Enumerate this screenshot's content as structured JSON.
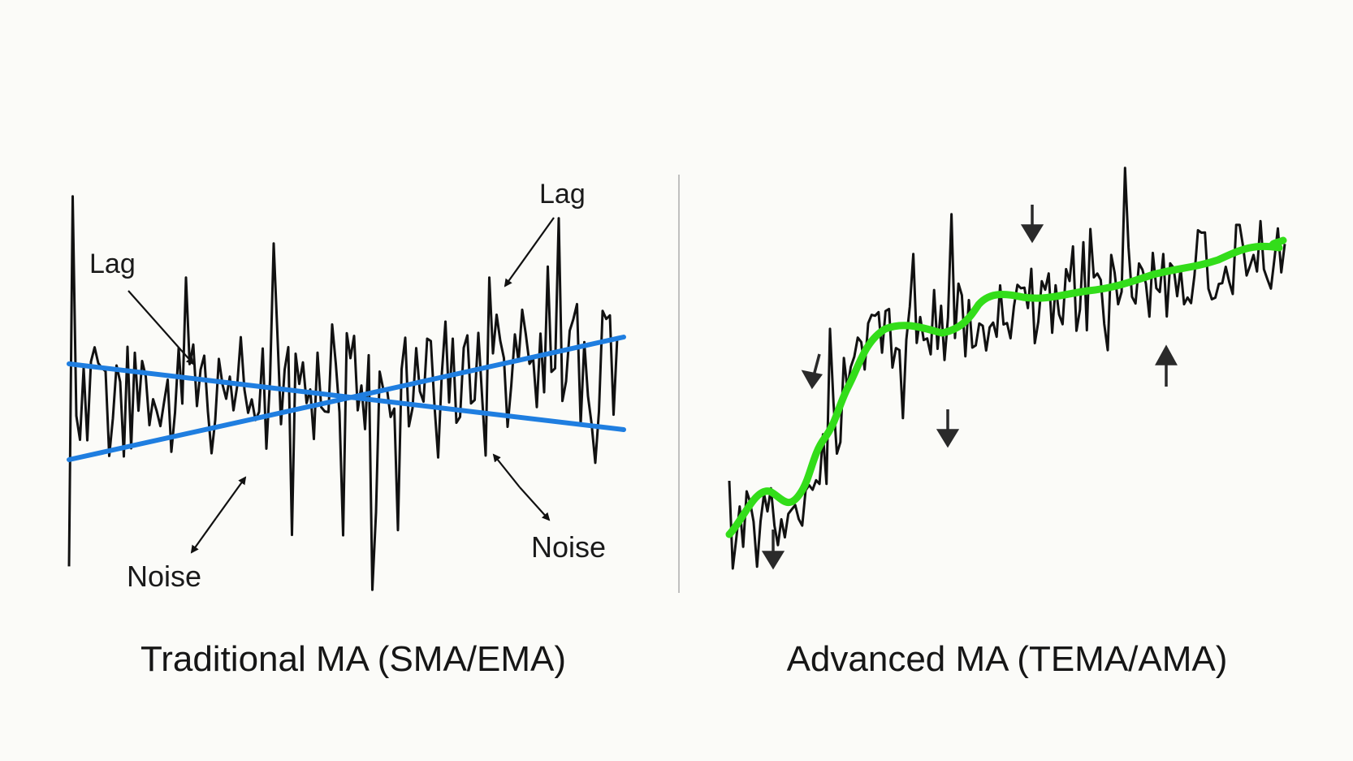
{
  "left_panel": {
    "caption": "Traditional MA (SMA/EMA)",
    "lag_label_1": "Lag",
    "lag_label_2": "Lag",
    "noise_label_1": "Noise",
    "noise_label_2": "Noise",
    "price_color": "#111111",
    "ma_color": "#1f7ee0"
  },
  "right_panel": {
    "caption": "Advanced MA (TEMA/AMA)",
    "price_color": "#111111",
    "ma_color": "#33dd1a",
    "arrow_color": "#2a2a2a"
  }
}
